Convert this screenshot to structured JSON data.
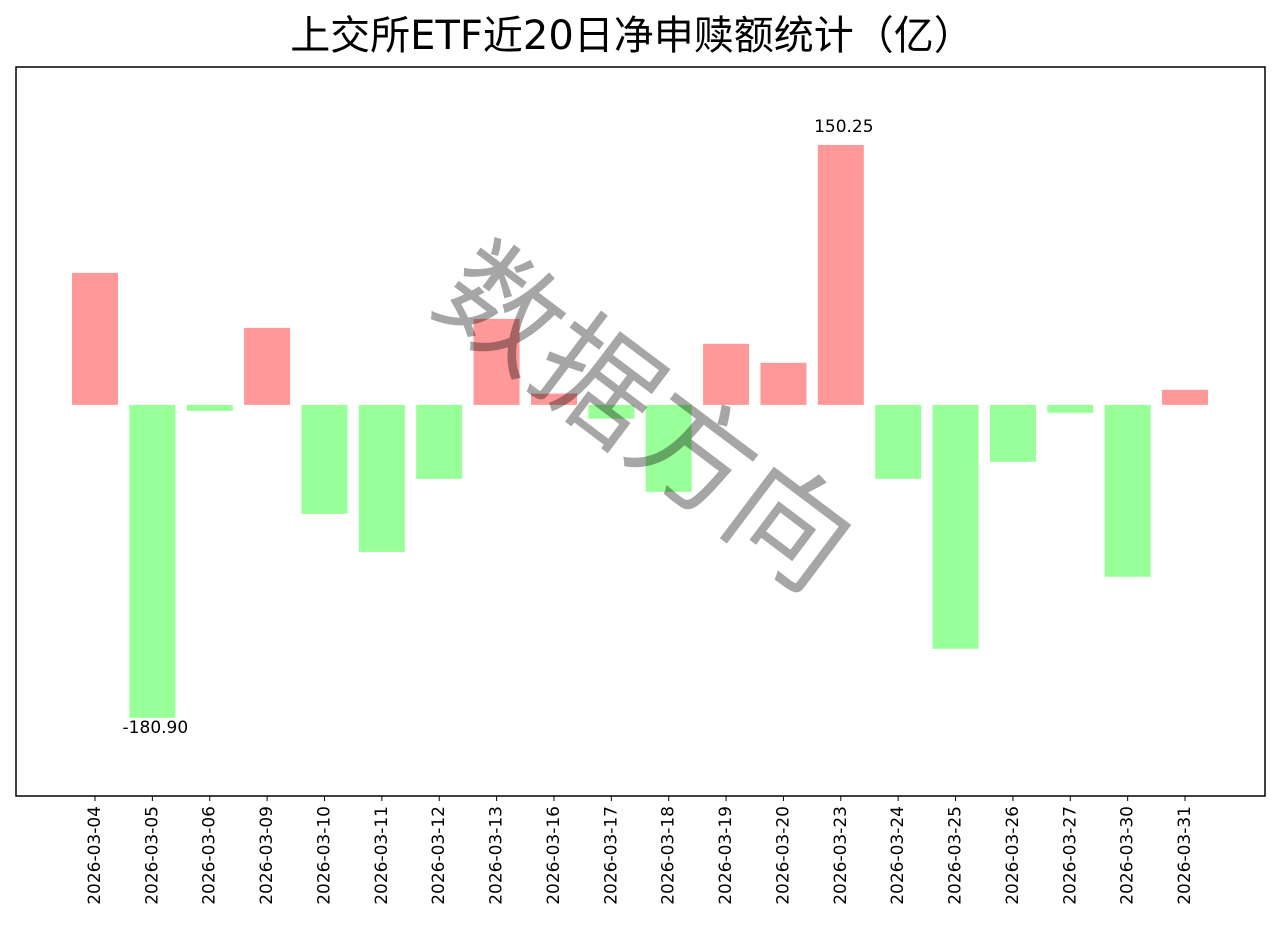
{
  "chart_data": {
    "type": "bar",
    "title": "上交所ETF近20日净申赎额统计（亿）",
    "categories": [
      "2026-03-04",
      "2026-03-05",
      "2026-03-06",
      "2026-03-09",
      "2026-03-10",
      "2026-03-11",
      "2026-03-12",
      "2026-03-13",
      "2026-03-16",
      "2026-03-17",
      "2026-03-18",
      "2026-03-19",
      "2026-03-20",
      "2026-03-23",
      "2026-03-24",
      "2026-03-25",
      "2026-03-26",
      "2026-03-27",
      "2026-03-30",
      "2026-03-31"
    ],
    "values": [
      76.3,
      -180.9,
      -3.5,
      44.5,
      -63.0,
      -85.0,
      -42.8,
      49.7,
      6.5,
      -8.0,
      -50.3,
      35.3,
      24.3,
      150.25,
      -42.8,
      -141.0,
      -32.9,
      -4.6,
      -99.4,
      8.7
    ],
    "value_labels": [
      null,
      "-180.90",
      null,
      null,
      null,
      null,
      null,
      null,
      null,
      null,
      null,
      null,
      null,
      "150.25",
      null,
      null,
      null,
      null,
      null,
      null
    ],
    "positive_color": "#ff9999",
    "negative_color": "#99ff99",
    "ylim": [
      -226.1,
      195.3
    ],
    "watermark": "数据方向"
  }
}
